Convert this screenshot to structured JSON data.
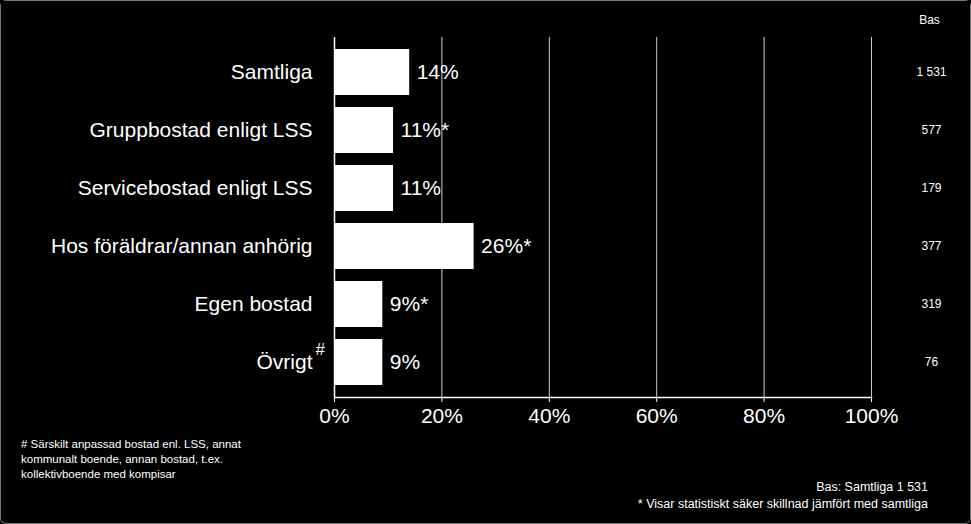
{
  "chart_data": {
    "type": "bar",
    "orientation": "horizontal",
    "categories": [
      "Samtliga",
      "Gruppbostad enligt LSS",
      "Servicebostad enligt LSS",
      "Hos föräldrar/annan anhörig",
      "Egen bostad",
      "Övrigt"
    ],
    "category_marks": [
      null,
      null,
      null,
      null,
      null,
      "#"
    ],
    "values": [
      14,
      11,
      11,
      26,
      9,
      9
    ],
    "value_labels": [
      "14%",
      "11%*",
      "11%",
      "26%*",
      "9%*",
      "9%"
    ],
    "data_labels": true,
    "color": "#ffffff",
    "xlim": [
      0,
      100
    ],
    "xticks": [
      {
        "value": 0,
        "label": "0%"
      },
      {
        "value": 20,
        "label": "20%"
      },
      {
        "value": 40,
        "label": "40%"
      },
      {
        "value": 60,
        "label": "60%"
      },
      {
        "value": 80,
        "label": "80%"
      },
      {
        "value": 100,
        "label": "100%"
      }
    ],
    "grid": true,
    "base_title": "Bas",
    "bases": [
      1531,
      577,
      179,
      377,
      319,
      76
    ],
    "base_labels": [
      "1 531",
      "577",
      "179",
      "377",
      "319",
      "76"
    ],
    "footnote": "# Särskilt anpassad bostad enl. LSS, annat kommunalt boende, annan bostad, t.ex. kollektivboende med kompisar",
    "source_note": "Bas: Samtliga 1 531",
    "significance_note": "* Visar statistiskt säker skillnad jämfört med samtliga"
  }
}
